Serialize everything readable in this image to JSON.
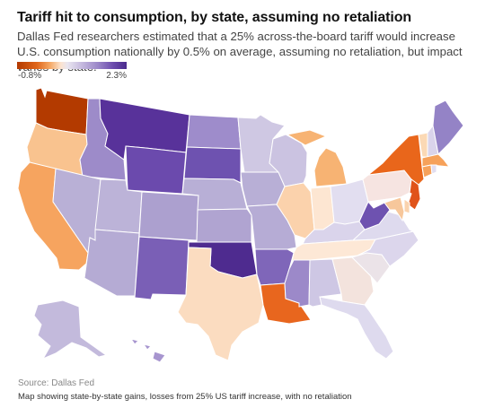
{
  "header": {
    "title": "Tariff hit to consumption, by state, assuming no retaliation",
    "subtitle": "Dallas Fed researchers estimated that a 25% across-the-board tariff would increase U.S. consumption nationally by 0.5% on average, assuming no retaliation, but impact varies by state."
  },
  "legend": {
    "min_label": "-0.8%",
    "max_label": "2.3%",
    "min_value": -0.8,
    "max_value": 2.3,
    "color_low": "#b33a00",
    "color_high": "#4a2a8c"
  },
  "footer": {
    "source": "Source: Dallas Fed",
    "caption": "Map showing state-by-state gains, losses from 25% US tariff increase, with no retaliation"
  },
  "map": {
    "states": [
      {
        "name": "Washington",
        "color": "#b33a00"
      },
      {
        "name": "Oregon",
        "color": "#f9c38f"
      },
      {
        "name": "California",
        "color": "#f6a45f"
      },
      {
        "name": "Idaho",
        "color": "#9d8bc9"
      },
      {
        "name": "Nevada",
        "color": "#b9b0d6"
      },
      {
        "name": "Montana",
        "color": "#58329a"
      },
      {
        "name": "Wyoming",
        "color": "#6b4aad"
      },
      {
        "name": "Utah",
        "color": "#bcb3d8"
      },
      {
        "name": "Arizona",
        "color": "#b5abd4"
      },
      {
        "name": "Colorado",
        "color": "#aca0cf"
      },
      {
        "name": "New Mexico",
        "color": "#7a5fb6"
      },
      {
        "name": "North Dakota",
        "color": "#9e8ccb"
      },
      {
        "name": "South Dakota",
        "color": "#6e52b0"
      },
      {
        "name": "Nebraska",
        "color": "#b8afd6"
      },
      {
        "name": "Kansas",
        "color": "#b0a4d1"
      },
      {
        "name": "Oklahoma",
        "color": "#4e2b8f"
      },
      {
        "name": "Texas",
        "color": "#fbdcc0"
      },
      {
        "name": "Minnesota",
        "color": "#cfc8e3"
      },
      {
        "name": "Iowa",
        "color": "#b8afd6"
      },
      {
        "name": "Missouri",
        "color": "#b6acd5"
      },
      {
        "name": "Arkansas",
        "color": "#7f66b9"
      },
      {
        "name": "Louisiana",
        "color": "#e8661e"
      },
      {
        "name": "Wisconsin",
        "color": "#cbc3e1"
      },
      {
        "name": "Illinois",
        "color": "#fbd2ac"
      },
      {
        "name": "Michigan",
        "color": "#f7b373"
      },
      {
        "name": "Indiana",
        "color": "#fde6d2"
      },
      {
        "name": "Ohio",
        "color": "#e2def0"
      },
      {
        "name": "Kentucky",
        "color": "#dad4eb"
      },
      {
        "name": "Tennessee",
        "color": "#fde8d6"
      },
      {
        "name": "Mississippi",
        "color": "#9c89c9"
      },
      {
        "name": "Alabama",
        "color": "#cec7e4"
      },
      {
        "name": "Georgia",
        "color": "#f3e3dd"
      },
      {
        "name": "Florida",
        "color": "#dedaee"
      },
      {
        "name": "South Carolina",
        "color": "#ebe3e8"
      },
      {
        "name": "North Carolina",
        "color": "#dcd6ec"
      },
      {
        "name": "Virginia",
        "color": "#dedaee"
      },
      {
        "name": "West Virginia",
        "color": "#6e52b0"
      },
      {
        "name": "Pennsylvania",
        "color": "#f6e4e1"
      },
      {
        "name": "New York",
        "color": "#e9661b"
      },
      {
        "name": "Vermont",
        "color": "#fbd9b5"
      },
      {
        "name": "New Hampshire",
        "color": "#dad4eb"
      },
      {
        "name": "Maine",
        "color": "#9483c6"
      },
      {
        "name": "Massachusetts",
        "color": "#f6a15a"
      },
      {
        "name": "Connecticut",
        "color": "#f6a15a"
      },
      {
        "name": "Rhode Island",
        "color": "#e1ddf0"
      },
      {
        "name": "New Jersey",
        "color": "#e0531a"
      },
      {
        "name": "Delaware",
        "color": "#fad3ae"
      },
      {
        "name": "Maryland",
        "color": "#f7c79b"
      },
      {
        "name": "Alaska",
        "color": "#c3badc"
      },
      {
        "name": "Hawaii",
        "color": "#a795cf"
      }
    ]
  }
}
